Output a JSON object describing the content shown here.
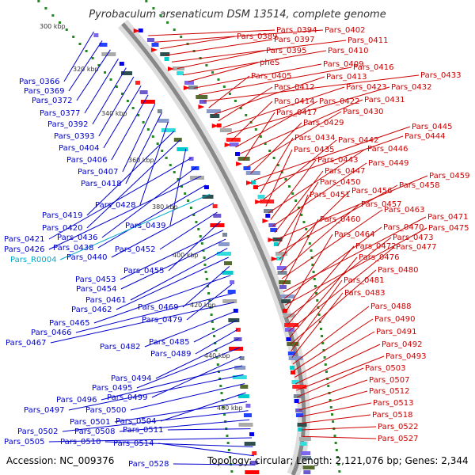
{
  "title": "Pyrobaculum arsenaticum DSM 13514, complete genome",
  "accession_text": "Accession: NC_009376",
  "summary_text": "Topology: circular; Length: 2,121,076 bp; Genes: 2,344",
  "colors": {
    "backbone": "#999999",
    "minus_label": "#0000cc",
    "plus_label": "#cc0000",
    "rna_label": "#00aacc",
    "tick_green": "#228822"
  },
  "kbp_ticks": [
    "300 kbp",
    "320 kbp",
    "340 kbp",
    "360 kbp",
    "380 kbp",
    "400 kbp",
    "420 kbp",
    "440 kbp",
    "460 kbp"
  ],
  "right_labels": [
    "Pars_0394",
    "Pars_0402",
    "Pars_0389",
    "Pars_0397",
    "Pars_0411",
    "Pars_0395",
    "Pars_0410",
    "pheS",
    "Pars_0409",
    "Pars_0416",
    "Pars_0433",
    "Pars_0405",
    "Pars_0413",
    "Pars_0412",
    "Pars_0423",
    "Pars_0432",
    "Pars_0414",
    "Pars_0422",
    "Pars_0431",
    "Pars_0417",
    "Pars_0430",
    "Pars_0429",
    "Pars_0445",
    "Pars_0444",
    "Pars_0434",
    "Pars_0442",
    "Pars_0435",
    "Pars_0446",
    "Pars_0443",
    "Pars_0449",
    "Pars_0447",
    "Pars_0459",
    "Pars_0450",
    "Pars_0458",
    "Pars_0456",
    "Pars_0451",
    "Pars_0457",
    "Pars_0463",
    "Pars_0460",
    "Pars_0471",
    "Pars_0470",
    "Pars_0475",
    "Pars_0464",
    "Pars_0473",
    "Pars_0472",
    "Pars_0477",
    "Pars_0476",
    "Pars_0480",
    "Pars_0481",
    "Pars_0483",
    "Pars_0488",
    "Pars_0490",
    "Pars_0491",
    "Pars_0492",
    "Pars_0493",
    "Pars_0503",
    "Pars_0507",
    "Pars_0512",
    "Pars_0513",
    "Pars_0518",
    "Pars_0522",
    "Pars_0527"
  ],
  "left_labels": [
    "Pars_0366",
    "Pars_0369",
    "Pars_0372",
    "Pars_0377",
    "Pars_0392",
    "Pars_0393",
    "Pars_0404",
    "Pars_0406",
    "Pars_0407",
    "Pars_0418",
    "Pars_0428",
    "Pars_0419",
    "Pars_0420",
    "Pars_0439",
    "Pars_0421",
    "Pars_0436",
    "Pars_0426",
    "Pars_0438",
    "Pars_R0004",
    "Pars_0440",
    "Pars_0452",
    "Pars_0455",
    "Pars_0453",
    "Pars_0454",
    "Pars_0461",
    "Pars_0462",
    "Pars_0469",
    "Pars_0465",
    "Pars_0479",
    "Pars_0466",
    "Pars_0467",
    "Pars_0482",
    "Pars_0485",
    "Pars_0489",
    "Pars_0494",
    "Pars_0495",
    "Pars_0499",
    "Pars_0496",
    "Pars_0497",
    "Pars_0500",
    "Pars_0504",
    "Pars_0501",
    "Pars_0502",
    "Pars_0508",
    "Pars_0511",
    "Pars_0505",
    "Pars_0510",
    "Pars_0514",
    "Pars_0528"
  ]
}
